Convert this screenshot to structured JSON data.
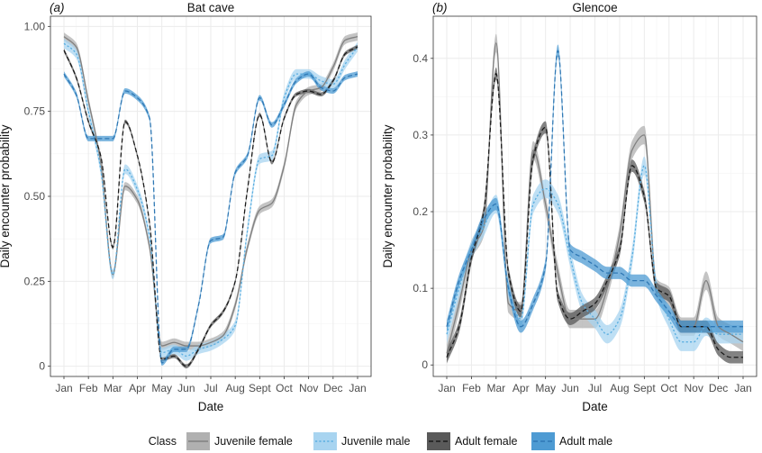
{
  "legend": {
    "title": "Class",
    "entries": [
      {
        "label": "Juvenile female",
        "color": "#808080",
        "fill": "#b0b0b0",
        "dash": "solid"
      },
      {
        "label": "Juvenile male",
        "color": "#5aaee0",
        "fill": "#a8d4f0",
        "dash": "dotted"
      },
      {
        "label": "Adult female",
        "color": "#1a1a1a",
        "fill": "#5a5a5a",
        "dash": "dashed"
      },
      {
        "label": "Adult male",
        "color": "#2f78b4",
        "fill": "#4e9bd3",
        "dash": "dashed"
      }
    ]
  },
  "chart_data": [
    {
      "type": "line",
      "tag": "(a)",
      "title": "Bat cave",
      "xlabel": "Date",
      "ylabel": "Daily encounter probability",
      "x_ticks": [
        "Jan",
        "Feb",
        "Mar",
        "Apr",
        "May",
        "Jun",
        "Jul",
        "Aug",
        "Sept",
        "Oct",
        "Nov",
        "Dec",
        "Jan"
      ],
      "y_ticks": [
        "0",
        "0.25",
        "0.50",
        "0.75",
        "1.00"
      ],
      "ylim": [
        -0.03,
        1.03
      ],
      "x": [
        0,
        0.5,
        1,
        1.5,
        2,
        2.5,
        3,
        3.5,
        4,
        4.5,
        5,
        5.5,
        6,
        6.5,
        7,
        7.5,
        8,
        8.5,
        9,
        9.5,
        10,
        10.5,
        11,
        11.5,
        12
      ],
      "series": [
        {
          "name": "Juvenile female",
          "band": 0.012,
          "values": [
            0.97,
            0.94,
            0.78,
            0.6,
            0.27,
            0.53,
            0.49,
            0.35,
            0.06,
            0.07,
            0.06,
            0.06,
            0.07,
            0.09,
            0.18,
            0.35,
            0.46,
            0.48,
            0.59,
            0.77,
            0.81,
            0.82,
            0.88,
            0.96,
            0.97
          ]
        },
        {
          "name": "Juvenile male",
          "band": 0.014,
          "values": [
            0.95,
            0.92,
            0.75,
            0.58,
            0.27,
            0.58,
            0.52,
            0.38,
            0.04,
            0.05,
            0.03,
            0.05,
            0.06,
            0.08,
            0.12,
            0.4,
            0.61,
            0.62,
            0.79,
            0.86,
            0.86,
            0.84,
            0.83,
            0.89,
            0.94
          ]
        },
        {
          "name": "Adult female",
          "band": 0.006,
          "values": [
            0.93,
            0.85,
            0.72,
            0.62,
            0.35,
            0.72,
            0.62,
            0.42,
            0.02,
            0.03,
            0.0,
            0.05,
            0.12,
            0.16,
            0.25,
            0.52,
            0.74,
            0.6,
            0.73,
            0.8,
            0.81,
            0.8,
            0.84,
            0.92,
            0.94
          ]
        },
        {
          "name": "Adult male",
          "band": 0.008,
          "values": [
            0.86,
            0.8,
            0.67,
            0.67,
            0.67,
            0.81,
            0.79,
            0.73,
            0.01,
            0.05,
            0.05,
            0.18,
            0.37,
            0.38,
            0.57,
            0.62,
            0.79,
            0.71,
            0.77,
            0.84,
            0.86,
            0.82,
            0.81,
            0.85,
            0.86
          ]
        }
      ]
    },
    {
      "type": "line",
      "tag": "(b)",
      "title": "Glencoe",
      "xlabel": "Date",
      "ylabel": "Daily encounter probability",
      "x_ticks": [
        "Jan",
        "Feb",
        "Mar",
        "Apr",
        "May",
        "Jun",
        "Jul",
        "Aug",
        "Sept",
        "Oct",
        "Nov",
        "Dec",
        "Jan"
      ],
      "y_ticks": [
        "0",
        "0.1",
        "0.2",
        "0.3",
        "0.4"
      ],
      "ylim": [
        -0.015,
        0.455
      ],
      "x": [
        0,
        0.5,
        1,
        1.5,
        2,
        2.5,
        3,
        3.5,
        4,
        4.5,
        5,
        5.5,
        6,
        6.5,
        7,
        7.5,
        8,
        8.5,
        9,
        9.5,
        10,
        10.5,
        11,
        11.5,
        12
      ],
      "series": [
        {
          "name": "Juvenile female",
          "band": 0.012,
          "values": [
            0.015,
            0.08,
            0.15,
            0.18,
            0.42,
            0.08,
            0.07,
            0.28,
            0.21,
            0.12,
            0.06,
            0.06,
            0.06,
            0.1,
            0.17,
            0.28,
            0.3,
            0.1,
            0.09,
            0.05,
            0.05,
            0.11,
            0.05,
            0.04,
            0.03
          ]
        },
        {
          "name": "Juvenile male",
          "band": 0.012,
          "values": [
            0.04,
            0.1,
            0.15,
            0.18,
            0.21,
            0.1,
            0.06,
            0.21,
            0.23,
            0.21,
            0.14,
            0.08,
            0.06,
            0.04,
            0.06,
            0.14,
            0.26,
            0.1,
            0.06,
            0.03,
            0.03,
            0.05,
            0.04,
            0.04,
            0.04
          ]
        },
        {
          "name": "Adult female",
          "band": 0.008,
          "values": [
            0.01,
            0.05,
            0.14,
            0.2,
            0.38,
            0.12,
            0.07,
            0.27,
            0.31,
            0.09,
            0.06,
            0.07,
            0.08,
            0.11,
            0.15,
            0.26,
            0.22,
            0.1,
            0.09,
            0.05,
            0.05,
            0.05,
            0.02,
            0.01,
            0.01
          ]
        },
        {
          "name": "Adult male",
          "band": 0.008,
          "values": [
            0.05,
            0.11,
            0.15,
            0.19,
            0.21,
            0.1,
            0.05,
            0.08,
            0.13,
            0.41,
            0.15,
            0.14,
            0.13,
            0.12,
            0.12,
            0.11,
            0.11,
            0.09,
            0.07,
            0.05,
            0.05,
            0.05,
            0.05,
            0.05,
            0.05
          ]
        }
      ]
    }
  ]
}
